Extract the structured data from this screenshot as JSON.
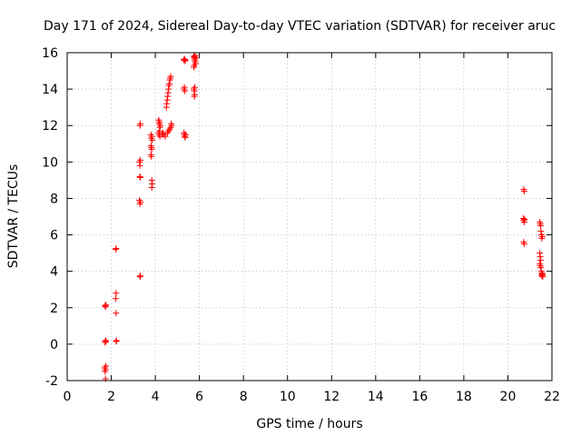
{
  "chart_data": {
    "type": "scatter",
    "title": "Day 171 of 2024, Sidereal Day-to-day VTEC variation (SDTVAR) for receiver aruc",
    "xlabel": "GPS time / hours",
    "ylabel": "SDTVAR / TECUs",
    "xlim": [
      0,
      22
    ],
    "ylim": [
      -2,
      16
    ],
    "xticks": [
      "0",
      "2",
      "4",
      "6",
      "8",
      "10",
      "12",
      "14",
      "16",
      "18",
      "20",
      "22"
    ],
    "yticks": [
      "-2",
      "0",
      "2",
      "4",
      "6",
      "8",
      "10",
      "12",
      "14",
      "16"
    ],
    "grid": true,
    "marker": "+",
    "color": "#ff0000",
    "points": [
      [
        1.72,
        2.1
      ],
      [
        1.74,
        2.05
      ],
      [
        1.76,
        2.15
      ],
      [
        1.72,
        0.1
      ],
      [
        1.74,
        0.2
      ],
      [
        1.76,
        0.15
      ],
      [
        1.7,
        -1.3
      ],
      [
        1.72,
        -1.5
      ],
      [
        1.74,
        -1.4
      ],
      [
        1.76,
        -1.2
      ],
      [
        1.74,
        -1.9
      ],
      [
        2.2,
        5.2
      ],
      [
        2.22,
        5.25
      ],
      [
        2.22,
        2.8
      ],
      [
        2.2,
        2.5
      ],
      [
        2.22,
        1.7
      ],
      [
        2.24,
        0.2
      ],
      [
        2.22,
        0.15
      ],
      [
        3.3,
        12.0
      ],
      [
        3.32,
        12.1
      ],
      [
        3.28,
        10.0
      ],
      [
        3.3,
        9.8
      ],
      [
        3.32,
        10.1
      ],
      [
        3.3,
        9.2
      ],
      [
        3.32,
        9.15
      ],
      [
        3.28,
        7.9
      ],
      [
        3.3,
        7.7
      ],
      [
        3.32,
        7.8
      ],
      [
        3.3,
        3.7
      ],
      [
        3.32,
        3.75
      ],
      [
        3.8,
        11.5
      ],
      [
        3.82,
        11.3
      ],
      [
        3.84,
        11.4
      ],
      [
        3.86,
        11.2
      ],
      [
        3.8,
        10.9
      ],
      [
        3.82,
        10.8
      ],
      [
        3.84,
        10.7
      ],
      [
        3.8,
        10.4
      ],
      [
        3.82,
        10.3
      ],
      [
        3.84,
        9.0
      ],
      [
        3.86,
        8.8
      ],
      [
        3.84,
        8.6
      ],
      [
        4.15,
        12.3
      ],
      [
        4.17,
        12.1
      ],
      [
        4.19,
        12.2
      ],
      [
        4.21,
        11.9
      ],
      [
        4.23,
        12.0
      ],
      [
        4.15,
        11.6
      ],
      [
        4.17,
        11.5
      ],
      [
        4.19,
        11.7
      ],
      [
        4.21,
        11.4
      ],
      [
        4.3,
        11.5
      ],
      [
        4.35,
        11.6
      ],
      [
        4.4,
        11.5
      ],
      [
        4.45,
        11.4
      ],
      [
        4.5,
        13.0
      ],
      [
        4.52,
        13.2
      ],
      [
        4.54,
        13.4
      ],
      [
        4.56,
        13.6
      ],
      [
        4.58,
        13.8
      ],
      [
        4.6,
        14.0
      ],
      [
        4.62,
        14.2
      ],
      [
        4.64,
        14.3
      ],
      [
        4.66,
        14.5
      ],
      [
        4.68,
        14.6
      ],
      [
        4.7,
        14.7
      ],
      [
        4.55,
        11.6
      ],
      [
        4.6,
        11.7
      ],
      [
        4.65,
        11.8
      ],
      [
        4.7,
        11.9
      ],
      [
        4.72,
        12.1
      ],
      [
        4.74,
        12.0
      ],
      [
        5.3,
        15.6
      ],
      [
        5.32,
        15.65
      ],
      [
        5.34,
        15.6
      ],
      [
        5.36,
        15.55
      ],
      [
        5.3,
        14.0
      ],
      [
        5.32,
        14.1
      ],
      [
        5.34,
        13.9
      ],
      [
        5.3,
        11.6
      ],
      [
        5.32,
        11.5
      ],
      [
        5.34,
        11.4
      ],
      [
        5.36,
        11.35
      ],
      [
        5.38,
        11.5
      ],
      [
        5.75,
        15.8
      ],
      [
        5.77,
        15.7
      ],
      [
        5.79,
        15.6
      ],
      [
        5.81,
        15.5
      ],
      [
        5.83,
        15.4
      ],
      [
        5.75,
        15.2
      ],
      [
        5.77,
        15.3
      ],
      [
        5.79,
        15.75
      ],
      [
        5.81,
        15.85
      ],
      [
        5.85,
        15.7
      ],
      [
        5.75,
        14.0
      ],
      [
        5.77,
        13.9
      ],
      [
        5.79,
        14.1
      ],
      [
        5.77,
        13.6
      ],
      [
        5.79,
        13.7
      ],
      [
        20.72,
        8.5
      ],
      [
        20.74,
        8.4
      ],
      [
        20.7,
        6.9
      ],
      [
        20.72,
        6.8
      ],
      [
        20.74,
        6.7
      ],
      [
        20.76,
        6.85
      ],
      [
        20.72,
        5.6
      ],
      [
        20.74,
        5.5
      ],
      [
        21.45,
        6.7
      ],
      [
        21.47,
        6.6
      ],
      [
        21.49,
        6.5
      ],
      [
        21.5,
        6.2
      ],
      [
        21.52,
        6.0
      ],
      [
        21.54,
        5.8
      ],
      [
        21.56,
        5.9
      ],
      [
        21.45,
        5.0
      ],
      [
        21.47,
        4.8
      ],
      [
        21.49,
        4.6
      ],
      [
        21.45,
        4.4
      ],
      [
        21.47,
        4.3
      ],
      [
        21.5,
        4.2
      ],
      [
        21.52,
        4.0
      ],
      [
        21.54,
        3.9
      ],
      [
        21.56,
        3.8
      ],
      [
        21.58,
        3.7
      ],
      [
        21.54,
        3.75
      ],
      [
        21.56,
        3.85
      ]
    ]
  }
}
